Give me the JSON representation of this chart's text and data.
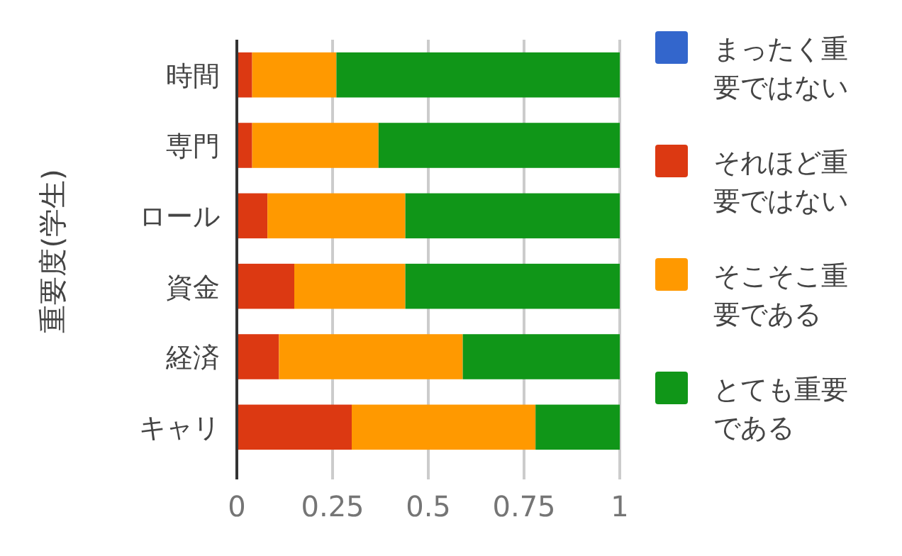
{
  "chart_data": {
    "type": "bar",
    "orientation": "horizontal",
    "stacked": true,
    "ylabel": "重要度(学生)",
    "categories": [
      "時間",
      "専門",
      "ロール",
      "資金",
      "経済",
      "キャリ"
    ],
    "series": [
      {
        "name": "まったく重要ではない",
        "color": "#3366cc",
        "values": [
          0,
          0,
          0,
          0,
          0,
          0
        ]
      },
      {
        "name": "それほど重要ではない",
        "color": "#dc3912",
        "values": [
          0.04,
          0.04,
          0.08,
          0.15,
          0.11,
          0.3
        ]
      },
      {
        "name": "そこそこ重要である",
        "color": "#ff9900",
        "values": [
          0.22,
          0.33,
          0.36,
          0.29,
          0.48,
          0.48
        ]
      },
      {
        "name": "とても重要である",
        "color": "#109618",
        "values": [
          0.74,
          0.63,
          0.56,
          0.56,
          0.41,
          0.22
        ]
      }
    ],
    "xlim": [
      0,
      1
    ],
    "xticks": [
      0,
      0.25,
      0.5,
      0.75,
      1
    ],
    "grid": "x",
    "legend": "right"
  }
}
